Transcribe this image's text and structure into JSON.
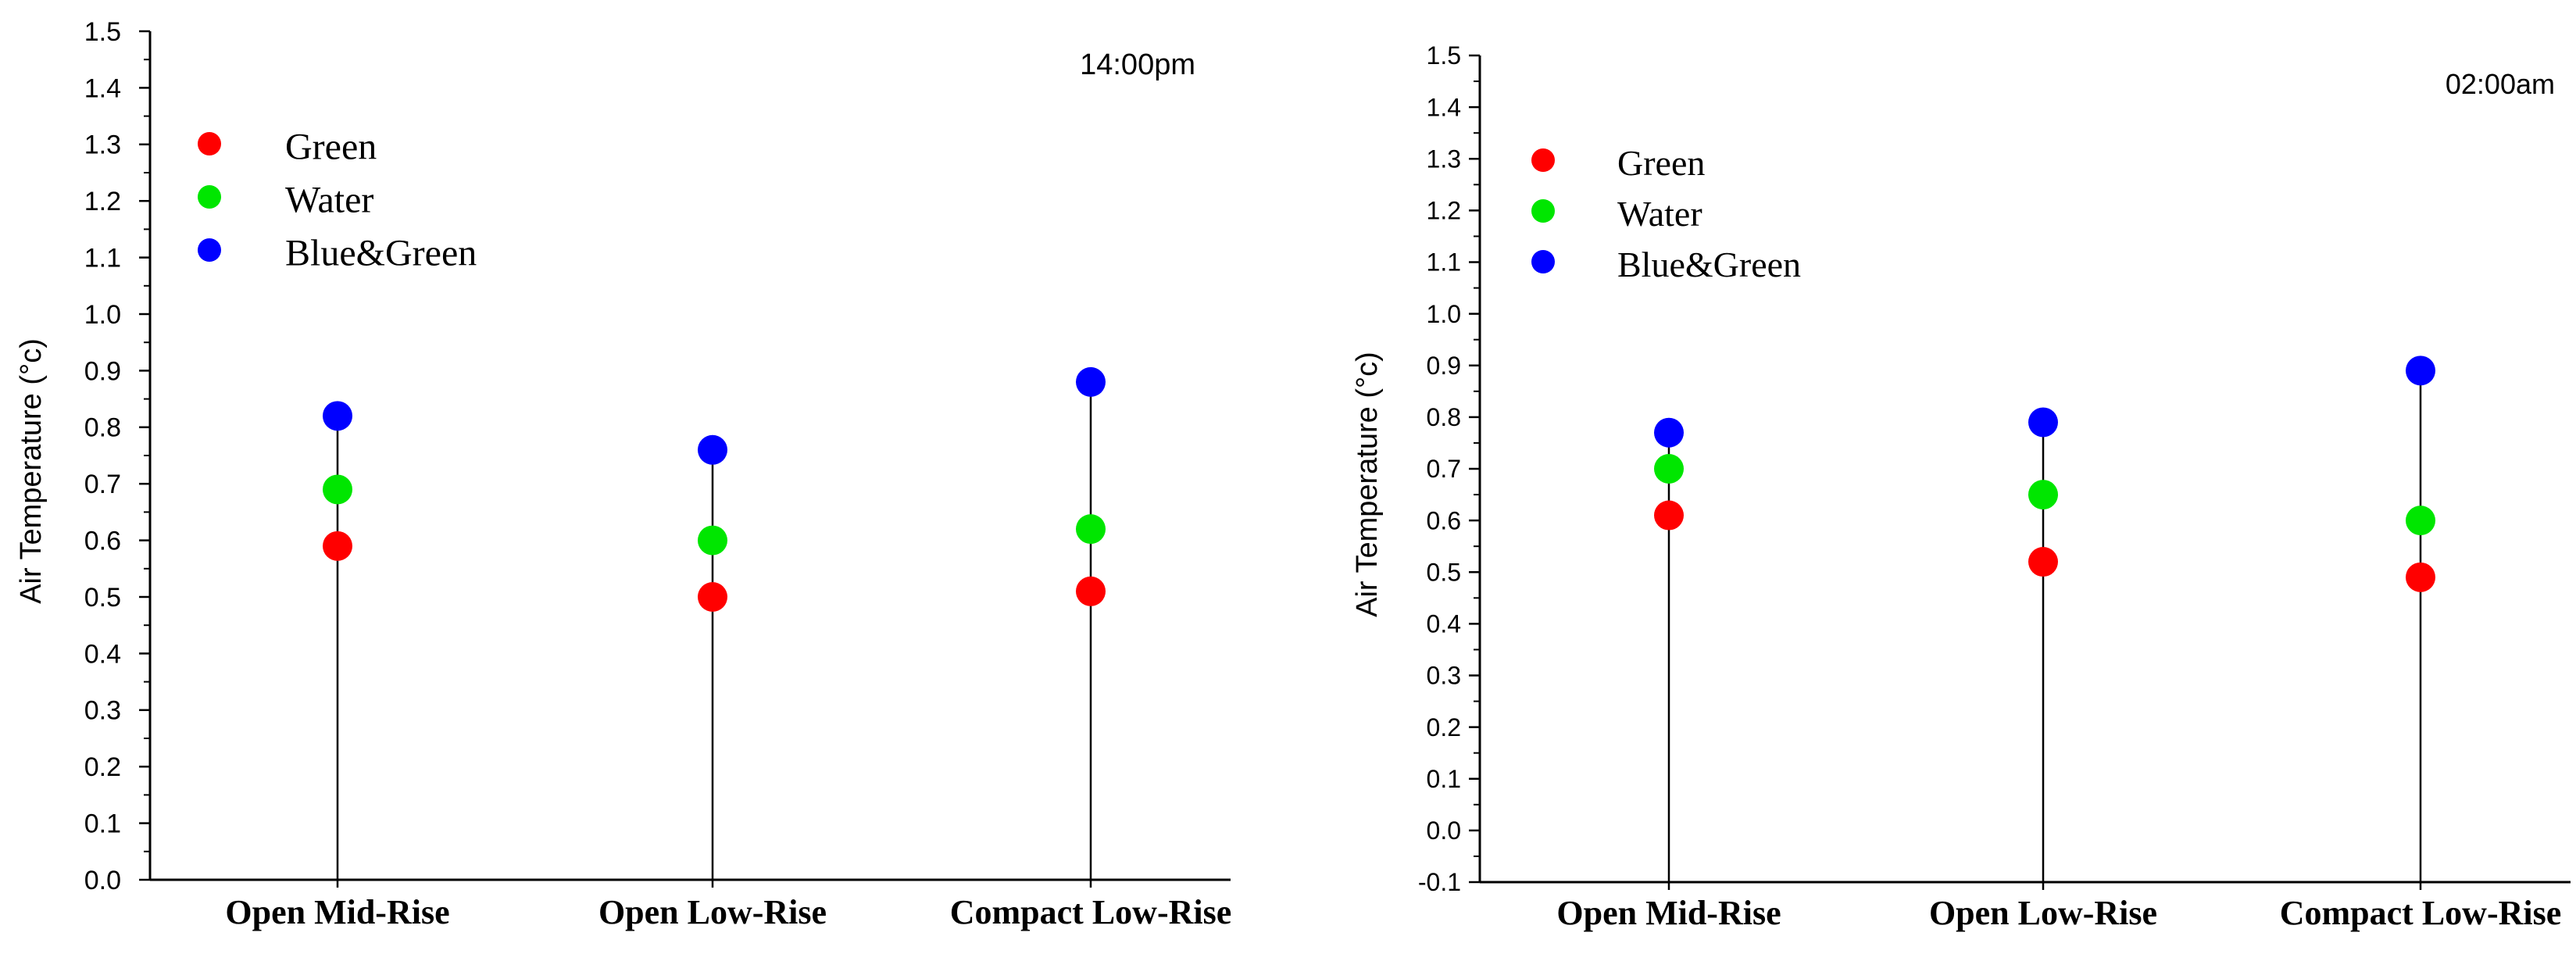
{
  "chart_data": [
    {
      "type": "scatter",
      "annotation": "14:00pm",
      "ylabel": "Air Temperature (°c)",
      "xlabel": "",
      "ylim": [
        0.0,
        1.5
      ],
      "yticks": [
        "0.0",
        "0.1",
        "0.2",
        "0.3",
        "0.4",
        "0.5",
        "0.6",
        "0.7",
        "0.8",
        "0.9",
        "1.0",
        "1.1",
        "1.2",
        "1.3",
        "1.4",
        "1.5"
      ],
      "categories": [
        "Open Mid-Rise",
        "Open Low-Rise",
        "Compact Low-Rise"
      ],
      "legend_position": "top-left",
      "series": [
        {
          "name": "Green",
          "color": "#ff0000",
          "values": [
            0.59,
            0.5,
            0.51
          ]
        },
        {
          "name": "Water",
          "color": "#00e600",
          "values": [
            0.69,
            0.6,
            0.62
          ]
        },
        {
          "name": "Blue&Green",
          "color": "#0000ff",
          "values": [
            0.82,
            0.76,
            0.88
          ]
        }
      ]
    },
    {
      "type": "scatter",
      "annotation": "02:00am",
      "ylabel": "Air Temperature (°c)",
      "xlabel": "",
      "ylim": [
        -0.1,
        1.5
      ],
      "yticks": [
        "-0.1",
        "0.0",
        "0.1",
        "0.2",
        "0.3",
        "0.4",
        "0.5",
        "0.6",
        "0.7",
        "0.8",
        "0.9",
        "1.0",
        "1.1",
        "1.2",
        "1.3",
        "1.4",
        "1.5"
      ],
      "categories": [
        "Open Mid-Rise",
        "Open Low-Rise",
        "Compact Low-Rise"
      ],
      "legend_position": "top-left",
      "series": [
        {
          "name": "Green",
          "color": "#ff0000",
          "values": [
            0.61,
            0.52,
            0.49
          ]
        },
        {
          "name": "Water",
          "color": "#00e600",
          "values": [
            0.7,
            0.65,
            0.6
          ]
        },
        {
          "name": "Blue&Green",
          "color": "#0000ff",
          "values": [
            0.77,
            0.79,
            0.89
          ]
        }
      ]
    }
  ]
}
